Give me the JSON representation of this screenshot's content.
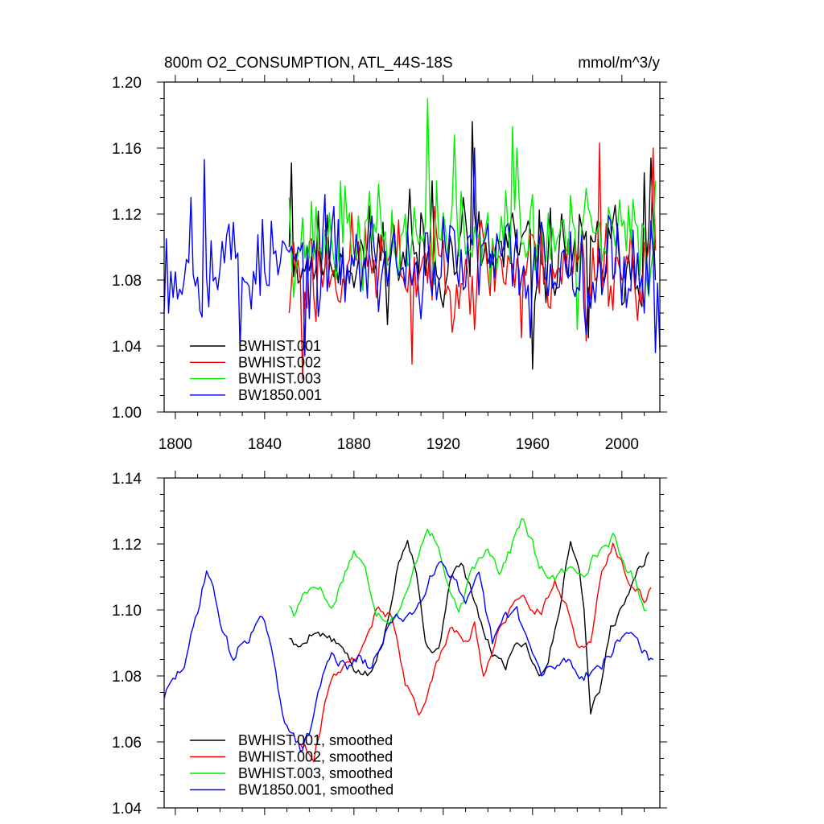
{
  "chart_data": [
    {
      "type": "line",
      "title": "800m O2_CONSUMPTION, ATL_44S-18S",
      "units": "mmol/m^3/y",
      "xlim": [
        1795,
        2017
      ],
      "ylim": [
        1.0,
        1.2
      ],
      "x_ticks": [
        1800,
        1840,
        1880,
        1920,
        1960,
        2000
      ],
      "x_tick_labels": [
        "1800",
        "1840",
        "1880",
        "1920",
        "1960",
        "2000"
      ],
      "y_ticks": [
        1.0,
        1.04,
        1.08,
        1.12,
        1.16,
        1.2
      ],
      "y_tick_labels": [
        "1.00",
        "1.04",
        "1.08",
        "1.12",
        "1.16",
        "1.20"
      ],
      "legend_location": "lower-left",
      "series": [
        {
          "name": "BWHIST.001",
          "label": "BWHIST.001",
          "color": "#000000",
          "start": 1851,
          "end": 2015,
          "mean": 1.095,
          "amp": 0.024,
          "seed": 11,
          "points": [
            [
              1851,
              1.1
            ],
            [
              1852,
              1.151
            ],
            [
              1856,
              1.08
            ],
            [
              1872,
              1.09
            ],
            [
              1905,
              1.135
            ],
            [
              1915,
              1.14
            ],
            [
              1929,
              1.13
            ],
            [
              1933,
              1.176
            ],
            [
              1940,
              1.09
            ],
            [
              1960,
              1.026
            ],
            [
              1985,
              1.045
            ],
            [
              2010,
              1.145
            ],
            [
              2013,
              1.154
            ],
            [
              2015,
              1.08
            ]
          ]
        },
        {
          "name": "BWHIST.002",
          "label": "BWHIST.002",
          "color": "#ff0000",
          "start": 1851,
          "end": 2015,
          "mean": 1.09,
          "amp": 0.024,
          "seed": 23,
          "points": [
            [
              1851,
              1.06
            ],
            [
              1857,
              1.02
            ],
            [
              1863,
              1.055
            ],
            [
              1906,
              1.029
            ],
            [
              1934,
              1.05
            ],
            [
              1955,
              1.045
            ],
            [
              1984,
              1.043
            ],
            [
              1990,
              1.163
            ],
            [
              2014,
              1.16
            ]
          ]
        },
        {
          "name": "BWHIST.003",
          "label": "BWHIST.003",
          "color": "#00ee00",
          "start": 1851,
          "end": 2015,
          "mean": 1.105,
          "amp": 0.024,
          "seed": 37,
          "points": [
            [
              1851,
              1.13
            ],
            [
              1874,
              1.14
            ],
            [
              1913,
              1.19
            ],
            [
              1917,
              1.14
            ],
            [
              1925,
              1.168
            ],
            [
              1951,
              1.173
            ],
            [
              1953,
              1.16
            ],
            [
              1980,
              1.05
            ],
            [
              2012,
              1.07
            ],
            [
              2015,
              1.14
            ]
          ]
        },
        {
          "name": "BW1850.001",
          "label": "BW1850.001",
          "color": "#0000ff",
          "start": 1795,
          "end": 2017,
          "mean": 1.09,
          "amp": 0.025,
          "seed": 53,
          "points": [
            [
              1795,
              1.06
            ],
            [
              1796,
              1.105
            ],
            [
              1807,
              1.13
            ],
            [
              1813,
              1.153
            ],
            [
              1826,
              1.115
            ],
            [
              1829,
              1.037
            ],
            [
              1855,
              1.1
            ],
            [
              1858,
              1.034
            ],
            [
              1934,
              1.16
            ],
            [
              1959,
              1.045
            ],
            [
              2015,
              1.036
            ],
            [
              2017,
              1.038
            ]
          ]
        }
      ]
    },
    {
      "type": "line",
      "title": "",
      "xlim": [
        1795,
        2017
      ],
      "ylim": [
        1.04,
        1.14
      ],
      "x_ticks": [
        1800,
        1840,
        1880,
        1920,
        1960,
        2000
      ],
      "y_ticks": [
        1.04,
        1.06,
        1.08,
        1.1,
        1.12,
        1.14
      ],
      "y_tick_labels": [
        "1.04",
        "1.06",
        "1.08",
        "1.10",
        "1.12",
        "1.14"
      ],
      "legend_location": "lower-left",
      "series": [
        {
          "name": "BWHIST.001, smoothed",
          "label": "BWHIST.001, smoothed",
          "color": "#000000",
          "jitter": 0.0012,
          "seed": 5,
          "points": [
            [
              1851,
              1.092
            ],
            [
              1855,
              1.088
            ],
            [
              1862,
              1.094
            ],
            [
              1870,
              1.091
            ],
            [
              1875,
              1.088
            ],
            [
              1880,
              1.082
            ],
            [
              1887,
              1.08
            ],
            [
              1893,
              1.09
            ],
            [
              1900,
              1.115
            ],
            [
              1904,
              1.122
            ],
            [
              1908,
              1.112
            ],
            [
              1912,
              1.09
            ],
            [
              1918,
              1.087
            ],
            [
              1923,
              1.11
            ],
            [
              1928,
              1.114
            ],
            [
              1933,
              1.105
            ],
            [
              1937,
              1.095
            ],
            [
              1942,
              1.087
            ],
            [
              1948,
              1.083
            ],
            [
              1952,
              1.09
            ],
            [
              1957,
              1.09
            ],
            [
              1963,
              1.08
            ],
            [
              1967,
              1.085
            ],
            [
              1972,
              1.1
            ],
            [
              1977,
              1.122
            ],
            [
              1981,
              1.112
            ],
            [
              1983,
              1.1
            ],
            [
              1986,
              1.07
            ],
            [
              1990,
              1.075
            ],
            [
              1995,
              1.095
            ],
            [
              2000,
              1.1
            ],
            [
              2005,
              1.11
            ],
            [
              2012,
              1.117
            ]
          ]
        },
        {
          "name": "BWHIST.002, smoothed",
          "label": "BWHIST.002, smoothed",
          "color": "#ff0000",
          "jitter": 0.0012,
          "seed": 9,
          "points": [
            [
              1856,
              1.06
            ],
            [
              1859,
              1.058
            ],
            [
              1862,
              1.055
            ],
            [
              1866,
              1.068
            ],
            [
              1870,
              1.08
            ],
            [
              1875,
              1.083
            ],
            [
              1880,
              1.085
            ],
            [
              1885,
              1.09
            ],
            [
              1890,
              1.1
            ],
            [
              1897,
              1.098
            ],
            [
              1903,
              1.078
            ],
            [
              1909,
              1.068
            ],
            [
              1913,
              1.075
            ],
            [
              1918,
              1.085
            ],
            [
              1924,
              1.095
            ],
            [
              1930,
              1.09
            ],
            [
              1934,
              1.095
            ],
            [
              1938,
              1.08
            ],
            [
              1944,
              1.093
            ],
            [
              1950,
              1.1
            ],
            [
              1955,
              1.105
            ],
            [
              1960,
              1.1
            ],
            [
              1964,
              1.1
            ],
            [
              1970,
              1.108
            ],
            [
              1976,
              1.1
            ],
            [
              1981,
              1.088
            ],
            [
              1986,
              1.09
            ],
            [
              1991,
              1.112
            ],
            [
              1996,
              1.12
            ],
            [
              2003,
              1.11
            ],
            [
              2010,
              1.103
            ],
            [
              2013,
              1.106
            ]
          ]
        },
        {
          "name": "BWHIST.003, smoothed",
          "label": "BWHIST.003, smoothed",
          "color": "#00ee00",
          "jitter": 0.0014,
          "seed": 17,
          "points": [
            [
              1851,
              1.102
            ],
            [
              1853,
              1.098
            ],
            [
              1858,
              1.106
            ],
            [
              1864,
              1.108
            ],
            [
              1870,
              1.1
            ],
            [
              1875,
              1.11
            ],
            [
              1880,
              1.118
            ],
            [
              1885,
              1.112
            ],
            [
              1890,
              1.1
            ],
            [
              1896,
              1.097
            ],
            [
              1900,
              1.1
            ],
            [
              1904,
              1.105
            ],
            [
              1910,
              1.12
            ],
            [
              1913,
              1.126
            ],
            [
              1918,
              1.118
            ],
            [
              1922,
              1.108
            ],
            [
              1927,
              1.098
            ],
            [
              1933,
              1.112
            ],
            [
              1940,
              1.12
            ],
            [
              1945,
              1.112
            ],
            [
              1950,
              1.118
            ],
            [
              1955,
              1.128
            ],
            [
              1960,
              1.12
            ],
            [
              1963,
              1.112
            ],
            [
              1970,
              1.11
            ],
            [
              1976,
              1.112
            ],
            [
              1983,
              1.112
            ],
            [
              1990,
              1.118
            ],
            [
              1996,
              1.122
            ],
            [
              2000,
              1.115
            ],
            [
              2005,
              1.11
            ],
            [
              2011,
              1.1
            ]
          ]
        },
        {
          "name": "BW1850.001, smoothed",
          "label": "BW1850.001, smoothed",
          "color": "#0000ff",
          "jitter": 0.0016,
          "seed": 29,
          "points": [
            [
              1795,
              1.074
            ],
            [
              1800,
              1.079
            ],
            [
              1805,
              1.085
            ],
            [
              1810,
              1.1
            ],
            [
              1814,
              1.113
            ],
            [
              1818,
              1.103
            ],
            [
              1822,
              1.092
            ],
            [
              1826,
              1.085
            ],
            [
              1830,
              1.09
            ],
            [
              1835,
              1.094
            ],
            [
              1840,
              1.097
            ],
            [
              1844,
              1.083
            ],
            [
              1848,
              1.07
            ],
            [
              1852,
              1.062
            ],
            [
              1856,
              1.058
            ],
            [
              1860,
              1.062
            ],
            [
              1864,
              1.075
            ],
            [
              1870,
              1.088
            ],
            [
              1876,
              1.082
            ],
            [
              1882,
              1.085
            ],
            [
              1888,
              1.082
            ],
            [
              1895,
              1.095
            ],
            [
              1902,
              1.098
            ],
            [
              1908,
              1.1
            ],
            [
              1914,
              1.111
            ],
            [
              1919,
              1.115
            ],
            [
              1925,
              1.11
            ],
            [
              1930,
              1.1
            ],
            [
              1936,
              1.11
            ],
            [
              1942,
              1.09
            ],
            [
              1948,
              1.098
            ],
            [
              1953,
              1.1
            ],
            [
              1958,
              1.09
            ],
            [
              1964,
              1.08
            ],
            [
              1970,
              1.083
            ],
            [
              1976,
              1.085
            ],
            [
              1982,
              1.08
            ],
            [
              1988,
              1.082
            ],
            [
              1993,
              1.085
            ],
            [
              1998,
              1.09
            ],
            [
              2004,
              1.094
            ],
            [
              2008,
              1.09
            ],
            [
              2014,
              1.083
            ]
          ]
        }
      ]
    }
  ]
}
